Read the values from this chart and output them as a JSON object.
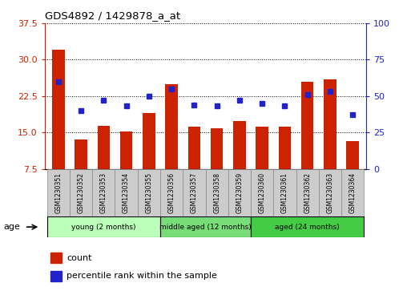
{
  "title": "GDS4892 / 1429878_a_at",
  "samples": [
    "GSM1230351",
    "GSM1230352",
    "GSM1230353",
    "GSM1230354",
    "GSM1230355",
    "GSM1230356",
    "GSM1230357",
    "GSM1230358",
    "GSM1230359",
    "GSM1230360",
    "GSM1230361",
    "GSM1230362",
    "GSM1230363",
    "GSM1230364"
  ],
  "counts": [
    32.0,
    13.5,
    16.3,
    15.2,
    19.0,
    25.0,
    16.2,
    15.8,
    17.3,
    16.2,
    16.2,
    25.5,
    26.0,
    13.2
  ],
  "percentiles": [
    60,
    40,
    47,
    43,
    50,
    55,
    44,
    43,
    47,
    45,
    43,
    51,
    53,
    37
  ],
  "bar_color": "#cc2200",
  "dot_color": "#2222cc",
  "ylim_left": [
    7.5,
    37.5
  ],
  "ylim_right": [
    0,
    100
  ],
  "yticks_left": [
    7.5,
    15.0,
    22.5,
    30.0,
    37.5
  ],
  "yticks_right": [
    0,
    25,
    50,
    75,
    100
  ],
  "groups": [
    {
      "label": "young (2 months)",
      "start": 0,
      "end": 5
    },
    {
      "label": "middle aged (12 months)",
      "start": 5,
      "end": 9
    },
    {
      "label": "aged (24 months)",
      "start": 9,
      "end": 14
    }
  ],
  "group_colors": [
    "#bbffbb",
    "#77dd77",
    "#44cc44"
  ],
  "legend_count_label": "count",
  "legend_pct_label": "percentile rank within the sample",
  "age_label": "age",
  "bg_color": "#ffffff",
  "tick_color_left": "#cc2200",
  "tick_color_right": "#2222cc",
  "grid_color": "#000000",
  "bar_width": 0.55,
  "sample_bg": "#cccccc"
}
